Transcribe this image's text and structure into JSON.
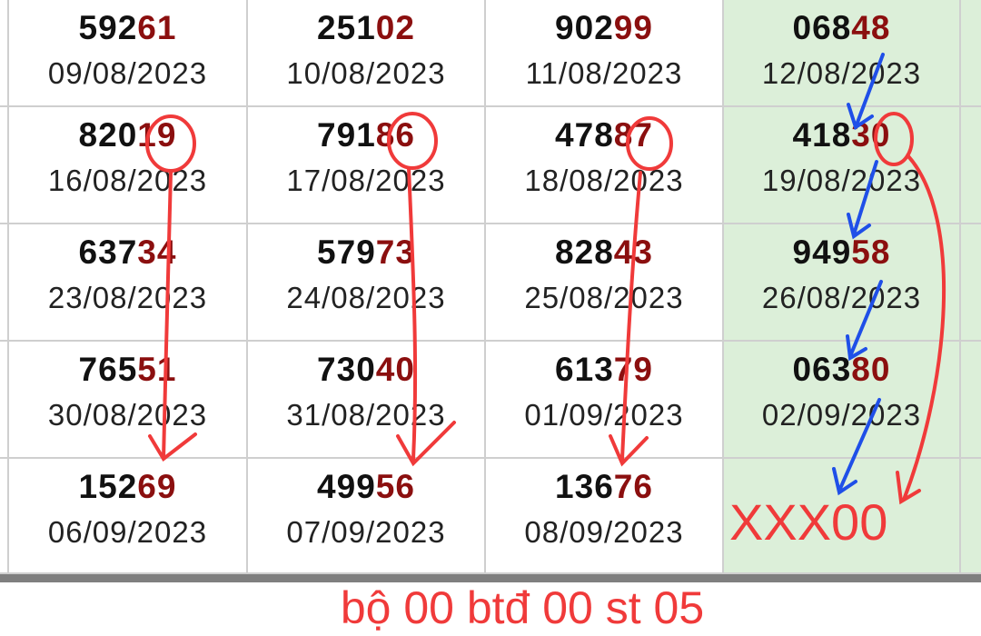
{
  "table": {
    "rows": [
      [
        {
          "head": "592",
          "tail": "61",
          "date": "09/08/2023"
        },
        {
          "head": "251",
          "tail": "02",
          "date": "10/08/2023"
        },
        {
          "head": "902",
          "tail": "99",
          "date": "11/08/2023"
        },
        {
          "head": "068",
          "tail": "48",
          "date": "12/08/2023"
        }
      ],
      [
        {
          "head": "820",
          "tail": "19",
          "date": "16/08/2023"
        },
        {
          "head": "791",
          "tail": "86",
          "date": "17/08/2023"
        },
        {
          "head": "478",
          "tail": "87",
          "date": "18/08/2023"
        },
        {
          "head": "418",
          "tail": "30",
          "date": "19/08/2023"
        }
      ],
      [
        {
          "head": "637",
          "tail": "34",
          "date": "23/08/2023"
        },
        {
          "head": "579",
          "tail": "73",
          "date": "24/08/2023"
        },
        {
          "head": "828",
          "tail": "43",
          "date": "25/08/2023"
        },
        {
          "head": "949",
          "tail": "58",
          "date": "26/08/2023"
        }
      ],
      [
        {
          "head": "765",
          "tail": "51",
          "date": "30/08/2023"
        },
        {
          "head": "730",
          "tail": "40",
          "date": "31/08/2023"
        },
        {
          "head": "613",
          "tail": "79",
          "date": "01/09/2023"
        },
        {
          "head": "063",
          "tail": "80",
          "date": "02/09/2023"
        }
      ],
      [
        {
          "head": "152",
          "tail": "69",
          "date": "06/09/2023"
        },
        {
          "head": "499",
          "tail": "56",
          "date": "07/09/2023"
        },
        {
          "head": "136",
          "tail": "76",
          "date": "08/09/2023"
        },
        {
          "head": "",
          "tail": "",
          "date": ""
        }
      ]
    ],
    "highlight_column_color": "#dcefd9"
  },
  "annotations": {
    "prediction": "XXX00",
    "summary": "bộ 00 btđ 00 st 05",
    "red_color": "#f03a3a",
    "blue_color": "#1f4fe8"
  }
}
